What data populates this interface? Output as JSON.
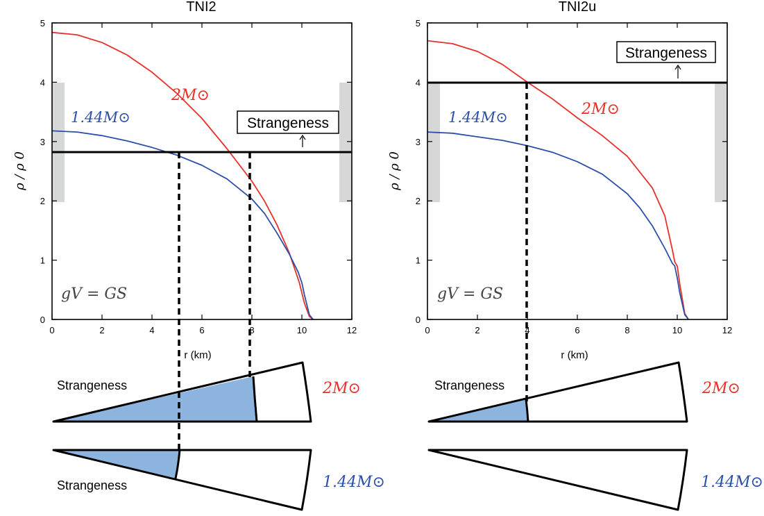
{
  "chart_data": [
    {
      "type": "line",
      "title": "TNI2",
      "xlabel": "r (km)",
      "ylabel": "ρ / ρ 0",
      "xlim": [
        0,
        12
      ],
      "ylim": [
        0,
        5
      ],
      "x_ticks": [
        "0",
        "2",
        "4",
        "6",
        "8",
        "10",
        "12"
      ],
      "y_ticks": [
        "0",
        "1",
        "2",
        "3",
        "4",
        "5"
      ],
      "grid": false,
      "threshold_y": 2.82,
      "threshold_label": "Strangeness",
      "annotation": "gV = GS",
      "gray_band_y": [
        2,
        4
      ],
      "series": [
        {
          "name": "2M⊙",
          "color": "#e8302a",
          "x": [
            0,
            1,
            2,
            3,
            4,
            5,
            6,
            7,
            8,
            8.5,
            9,
            9.5,
            9.9,
            10.1,
            10.3,
            10.45
          ],
          "y": [
            4.84,
            4.8,
            4.67,
            4.46,
            4.17,
            3.81,
            3.39,
            2.88,
            2.33,
            2.0,
            1.6,
            1.12,
            0.62,
            0.28,
            0.05,
            0.0
          ]
        },
        {
          "name": "1.44M⊙",
          "color": "#2b4fa8",
          "x": [
            0,
            1,
            2,
            3,
            4,
            5,
            6,
            7,
            8,
            8.5,
            9,
            9.5,
            9.85,
            10.0,
            10.1,
            10.3,
            10.45
          ],
          "y": [
            3.18,
            3.16,
            3.1,
            3.01,
            2.9,
            2.77,
            2.6,
            2.37,
            2.03,
            1.79,
            1.46,
            1.1,
            0.8,
            0.62,
            0.42,
            0.08,
            0.0
          ]
        }
      ]
    },
    {
      "type": "line",
      "title": "TNI2u",
      "xlabel": "r (km)",
      "ylabel": "ρ / ρ 0",
      "xlim": [
        0,
        12
      ],
      "ylim": [
        0,
        5
      ],
      "x_ticks": [
        "0",
        "2",
        "4",
        "6",
        "8",
        "10",
        "12"
      ],
      "y_ticks": [
        "0",
        "1",
        "2",
        "3",
        "4",
        "5"
      ],
      "grid": false,
      "threshold_y": 4.0,
      "threshold_label": "Strangeness",
      "annotation": "gV = GS",
      "gray_band_y": [
        2,
        4
      ],
      "series": [
        {
          "name": "2M⊙",
          "color": "#e8302a",
          "x": [
            0,
            1,
            2,
            3,
            4,
            5,
            6,
            7,
            8,
            9,
            9.5,
            9.8,
            9.9,
            10.0,
            10.1,
            10.3,
            10.45
          ],
          "y": [
            4.7,
            4.65,
            4.52,
            4.3,
            4.0,
            3.72,
            3.4,
            3.1,
            2.75,
            2.22,
            1.75,
            1.18,
            0.97,
            0.9,
            0.6,
            0.1,
            0.0
          ]
        },
        {
          "name": "1.44M⊙",
          "color": "#2b4fa8",
          "x": [
            0,
            1,
            2,
            3,
            4,
            5,
            6,
            7,
            8,
            8.5,
            9,
            9.5,
            9.8,
            9.9,
            10.0,
            10.1,
            10.3,
            10.45
          ],
          "y": [
            3.16,
            3.14,
            3.08,
            3.02,
            2.93,
            2.82,
            2.66,
            2.45,
            2.12,
            1.88,
            1.58,
            1.2,
            0.95,
            0.9,
            0.7,
            0.45,
            0.08,
            0.0
          ]
        }
      ]
    }
  ],
  "wedges": {
    "left_upper": {
      "label": "Strangeness",
      "mass": "2M⊙",
      "mass_color": "#e8302a",
      "core_fraction": 0.78
    },
    "left_lower": {
      "label": "Strangeness",
      "mass": "1.44M⊙",
      "mass_color": "#2b4fa8",
      "core_fraction": 0.48
    },
    "right_upper": {
      "label": "Strangeness",
      "mass": "2M⊙",
      "mass_color": "#e8302a",
      "core_fraction": 0.38
    },
    "right_lower": {
      "label": "",
      "mass": "1.44M⊙",
      "mass_color": "#2b4fa8",
      "core_fraction": 0
    }
  },
  "colors": {
    "core_fill": "#8cb4de",
    "gray_band": "#d6d8d8",
    "axis": "#000000"
  }
}
